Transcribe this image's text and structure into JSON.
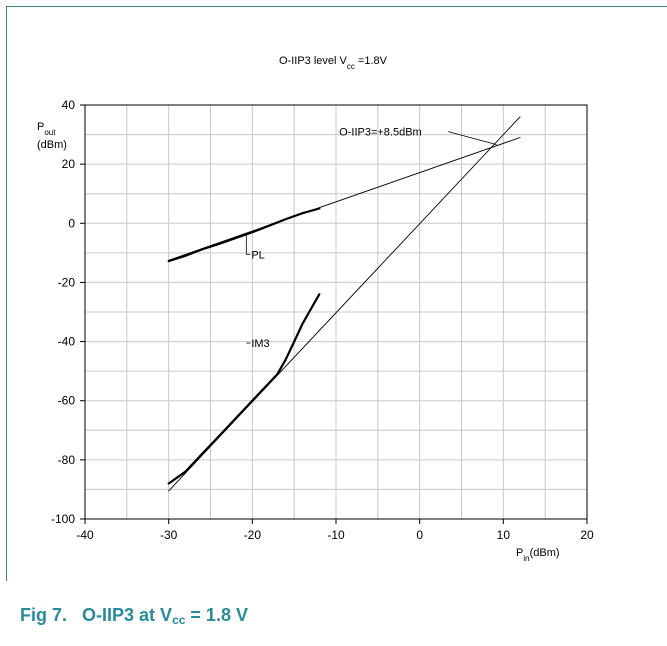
{
  "chart_data": {
    "type": "line",
    "title": {
      "prefix": "O-IIP3 level V",
      "sub": "cc",
      "suffix": " =1.8V"
    },
    "ylabel": {
      "main": "P",
      "sub": "out",
      "unit": "(dBm)"
    },
    "xlabel": {
      "main": "P",
      "sub": "in",
      "unit": "(dBm)"
    },
    "xlim": [
      -40,
      20
    ],
    "ylim": [
      -100,
      40
    ],
    "xticks": [
      -40,
      -30,
      -20,
      -10,
      0,
      10,
      20
    ],
    "yticks": [
      -100,
      -80,
      -60,
      -40,
      -20,
      0,
      20,
      40
    ],
    "xtick_labels": [
      "-40",
      "-30",
      "-20",
      "-10",
      "0",
      "10",
      "20"
    ],
    "ytick_labels": [
      "-100",
      "-80",
      "-60",
      "-40",
      "-20",
      "0",
      "20",
      "40"
    ],
    "grid": true,
    "series": [
      {
        "name": "PL",
        "style": "measured",
        "x": [
          -30,
          -28,
          -26,
          -24,
          -22,
          -20,
          -18,
          -16,
          -14,
          -12
        ],
        "y": [
          -12.8,
          -11,
          -8.8,
          -7,
          -5,
          -3,
          -0.8,
          1.4,
          3.4,
          5
        ]
      },
      {
        "name": "IM3",
        "style": "measured",
        "x": [
          -30,
          -28,
          -26,
          -24,
          -22,
          -20,
          -18,
          -17,
          -16,
          -15,
          -14,
          -13,
          -12
        ],
        "y": [
          -88,
          -84,
          -78,
          -72,
          -66,
          -60,
          -54,
          -51,
          -46,
          -40,
          -34,
          -29,
          -24
        ]
      },
      {
        "style": "fit",
        "x": [
          -30,
          12
        ],
        "y": [
          -12.5,
          29
        ]
      },
      {
        "style": "fit",
        "x": [
          -30,
          12
        ],
        "y": [
          -90.5,
          36
        ]
      }
    ],
    "annotations": [
      {
        "id": "pl",
        "text": "PL",
        "x": -20,
        "y": -10.5
      },
      {
        "id": "im3",
        "text": "IM3",
        "x": -20,
        "y": -40.5
      },
      {
        "id": "oiip3",
        "text": "O-IIP3=+8.5dBm",
        "x": -9.5,
        "y": 31
      }
    ]
  },
  "caption": {
    "fig": "Fig 7.",
    "text_prefix": "O-IIP3 at V",
    "text_sub": "cc",
    "text_suffix": " = 1.8 V"
  }
}
